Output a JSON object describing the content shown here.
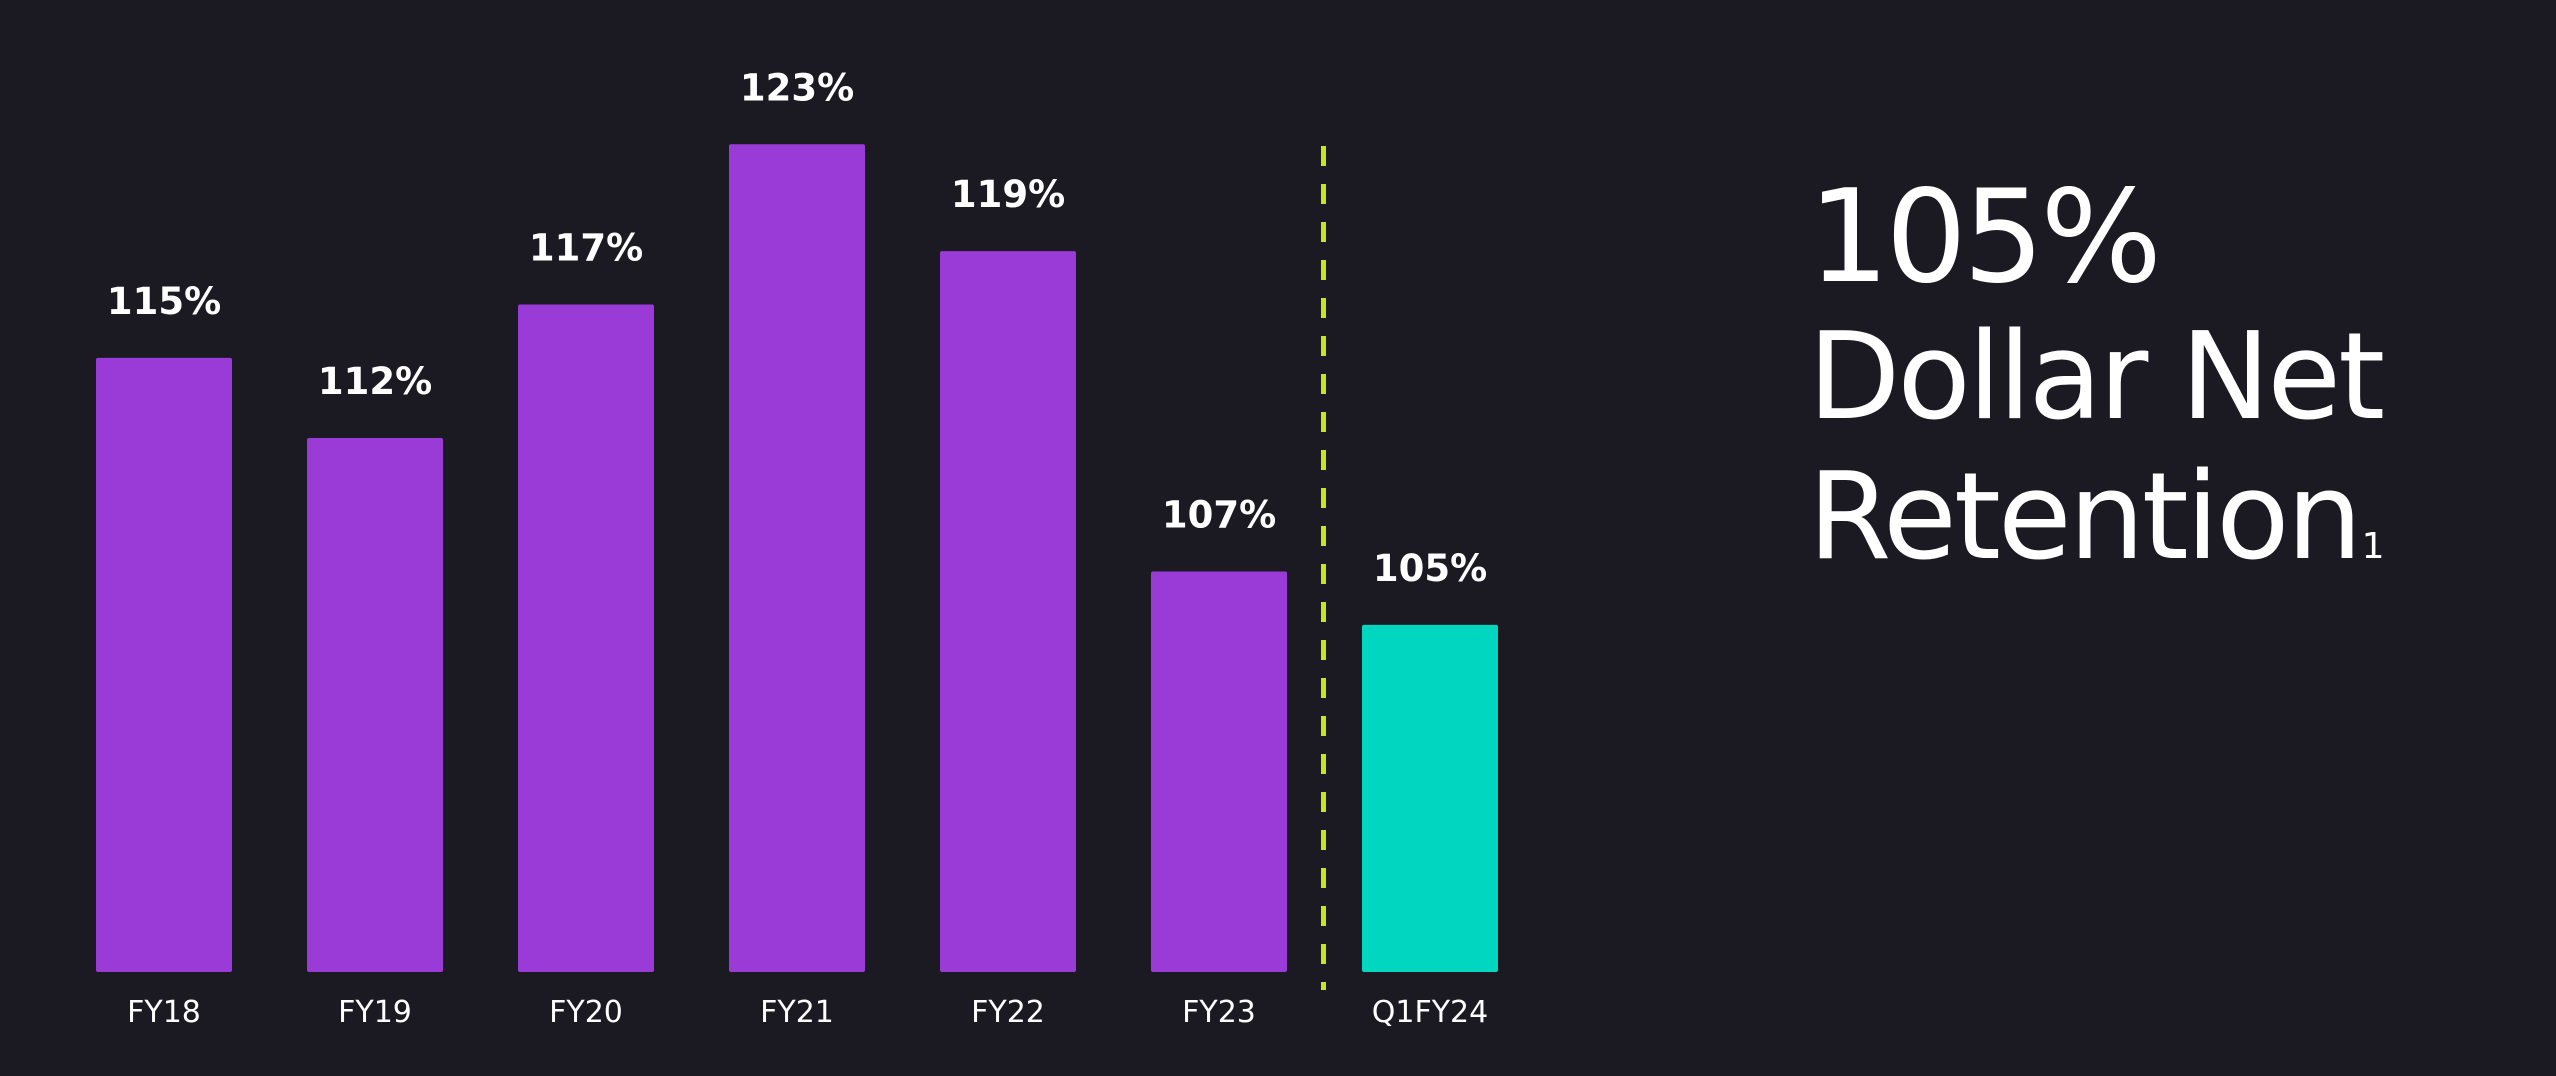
{
  "chart_data": {
    "type": "bar",
    "categories": [
      "FY18",
      "FY19",
      "FY20",
      "FY21",
      "FY22",
      "FY23",
      "Q1FY24"
    ],
    "values": [
      115,
      112,
      117,
      123,
      119,
      107,
      105
    ],
    "value_labels": [
      "115%",
      "112%",
      "117%",
      "123%",
      "119%",
      "107%",
      "105%"
    ],
    "unit": "%",
    "ylim": [
      92,
      125
    ],
    "highlight_index": 6,
    "divider_after_index": 5,
    "colors": {
      "bar": "#9a3bd8",
      "highlight_bar": "#00d6c0",
      "divider": "#c8e61e",
      "background": "#1b1a23",
      "text": "#ffffff"
    },
    "title": "",
    "xlabel": "",
    "ylabel": ""
  },
  "headline": {
    "value": "105%",
    "line1": "Dollar Net",
    "line2": "Retention",
    "footnote": "1"
  }
}
